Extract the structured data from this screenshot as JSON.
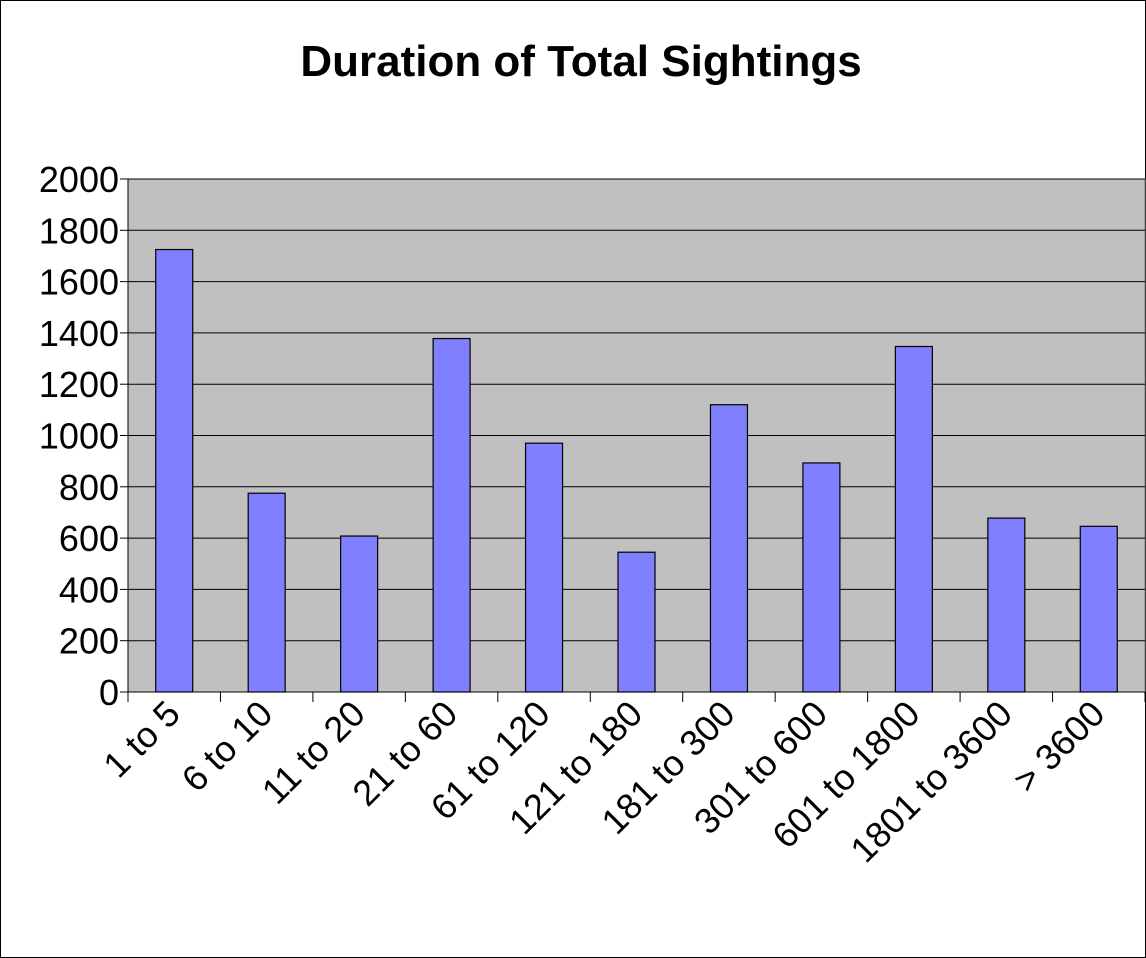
{
  "chart_data": {
    "type": "bar",
    "title": "Duration of Total Sightings",
    "xlabel": "",
    "ylabel": "",
    "categories": [
      "1 to 5",
      "6 to 10",
      "11 to 20",
      "21 to 60",
      "61 to 120",
      "121 to 180",
      "181 to 300",
      "301 to 600",
      "601 to 1800",
      "1801 to 3600",
      "> 3600"
    ],
    "values": [
      1725,
      775,
      608,
      1378,
      970,
      545,
      1120,
      893,
      1347,
      678,
      646
    ],
    "ylim": [
      0,
      2000
    ],
    "yticks": [
      0,
      200,
      400,
      600,
      800,
      1000,
      1200,
      1400,
      1600,
      1800,
      2000
    ],
    "grid": true,
    "legend": "none",
    "colors": {
      "bar_fill": "#8080ff",
      "plot_background": "#c0c0c0",
      "gridline": "#000000"
    }
  }
}
